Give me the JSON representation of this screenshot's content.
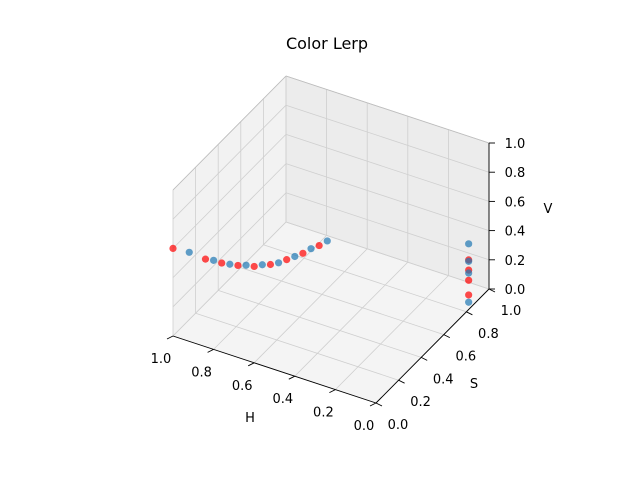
{
  "chart_data": {
    "type": "scatter",
    "title": "Color Lerp",
    "xlabel": "H",
    "ylabel": "S",
    "zlabel": "V",
    "xlim": [
      0.0,
      1.0
    ],
    "ylim": [
      0.0,
      1.0
    ],
    "zlim": [
      0.0,
      1.0
    ],
    "x_ticks": [
      "0.0",
      "0.2",
      "0.4",
      "0.6",
      "0.8",
      "1.0"
    ],
    "y_ticks": [
      "0.0",
      "0.2",
      "0.4",
      "0.6",
      "0.8",
      "1.0"
    ],
    "z_ticks": [
      "0.0",
      "0.2",
      "0.4",
      "0.6",
      "0.8",
      "1.0"
    ],
    "grid": true,
    "series": [
      {
        "color": "#ff0000",
        "points": [
          [
            1.0,
            0.0,
            0.6
          ],
          [
            0.84,
            0.0,
            0.6
          ],
          [
            0.76,
            0.0,
            0.61
          ],
          [
            0.68,
            0.0,
            0.63
          ],
          [
            0.6,
            0.0,
            0.66
          ],
          [
            0.52,
            0.0,
            0.71
          ],
          [
            0.44,
            0.0,
            0.78
          ],
          [
            0.36,
            0.0,
            0.86
          ],
          [
            0.28,
            0.0,
            0.95
          ],
          [
            0.0,
            0.82,
            0.1
          ],
          [
            0.0,
            0.82,
            0.2
          ],
          [
            0.0,
            0.82,
            0.27
          ],
          [
            0.0,
            0.82,
            0.34
          ]
        ]
      },
      {
        "color": "#1f77b4",
        "points": [
          [
            0.92,
            0.0,
            0.61
          ],
          [
            0.8,
            0.0,
            0.61
          ],
          [
            0.72,
            0.0,
            0.62
          ],
          [
            0.64,
            0.0,
            0.65
          ],
          [
            0.56,
            0.0,
            0.69
          ],
          [
            0.48,
            0.0,
            0.74
          ],
          [
            0.4,
            0.0,
            0.82
          ],
          [
            0.32,
            0.0,
            0.91
          ],
          [
            0.24,
            0.0,
            1.0
          ],
          [
            0.0,
            0.82,
            0.05
          ],
          [
            0.0,
            0.82,
            0.25
          ],
          [
            0.0,
            0.82,
            0.33
          ],
          [
            0.0,
            0.82,
            0.45
          ]
        ]
      }
    ]
  }
}
